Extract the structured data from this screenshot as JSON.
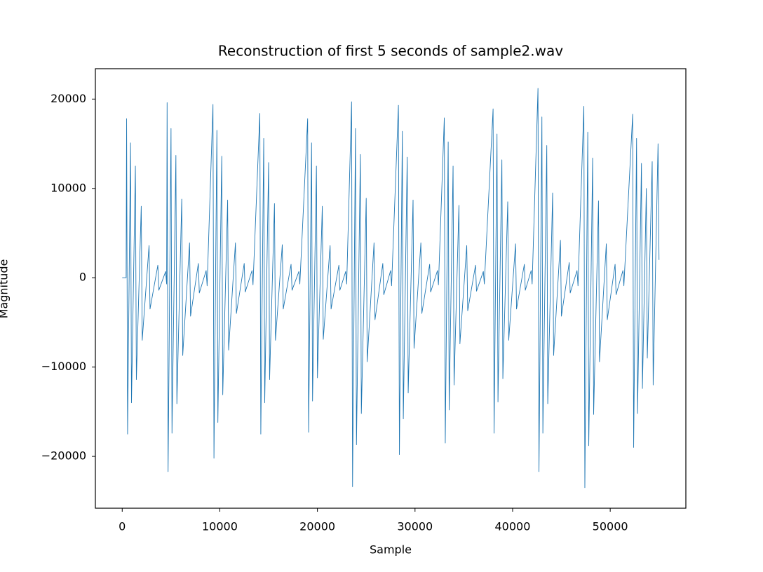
{
  "chart_data": {
    "type": "line",
    "title": "Reconstruction of first 5 seconds of sample2.wav",
    "x_label": "Sample",
    "y_label": "Magnitude",
    "color": "#1f77b4",
    "xlim": [
      -2750,
      57750
    ],
    "ylim": [
      -25800,
      23400
    ],
    "xticks": [
      0,
      10000,
      20000,
      30000,
      40000,
      50000
    ],
    "yticks": [
      {
        "value": -20000,
        "label": "−20000"
      },
      {
        "value": -10000,
        "label": "−10000"
      },
      0,
      10000,
      20000
    ],
    "x": [
      0,
      400,
      450,
      550,
      850,
      950,
      1350,
      1450,
      1950,
      2050,
      2750,
      2850,
      3650,
      3750,
      4450,
      4550,
      4600,
      4700,
      5000,
      5100,
      5500,
      5600,
      6100,
      6200,
      6900,
      7000,
      7800,
      7900,
      8600,
      8700,
      9300,
      9400,
      9700,
      9800,
      10200,
      10300,
      10800,
      10900,
      11600,
      11700,
      12500,
      12600,
      13300,
      13400,
      14100,
      14200,
      14500,
      14600,
      15000,
      15100,
      15600,
      15700,
      16400,
      16500,
      17300,
      17400,
      18100,
      18200,
      19000,
      19100,
      19400,
      19500,
      19900,
      20000,
      20500,
      20600,
      21300,
      21400,
      22200,
      22300,
      22900,
      23000,
      23500,
      23600,
      23900,
      24000,
      24400,
      24500,
      25000,
      25100,
      25800,
      25900,
      26700,
      26800,
      27500,
      27600,
      28300,
      28400,
      28700,
      28800,
      29200,
      29300,
      29800,
      29900,
      30600,
      30700,
      31500,
      31600,
      32300,
      32400,
      33000,
      33100,
      33400,
      33500,
      33900,
      34000,
      34500,
      34600,
      35300,
      35400,
      36200,
      36300,
      37000,
      37100,
      38000,
      38100,
      38400,
      38500,
      38900,
      39000,
      39500,
      39600,
      40300,
      40400,
      41200,
      41300,
      41900,
      42000,
      42600,
      42700,
      43000,
      43100,
      43500,
      43600,
      44100,
      44200,
      44900,
      45000,
      45800,
      45900,
      46600,
      46700,
      47300,
      47400,
      47700,
      47800,
      48200,
      48300,
      48800,
      48900,
      49600,
      49700,
      50500,
      50600,
      51300,
      51400,
      52300,
      52400,
      52700,
      52800,
      53200,
      53300,
      53700,
      53800,
      54300,
      54400,
      54900,
      55000
    ],
    "values": [
      0,
      0,
      17800,
      -17500,
      15100,
      -14000,
      12500,
      -11400,
      8000,
      -7000,
      3600,
      -3500,
      1400,
      -1400,
      700,
      -700,
      19600,
      -21700,
      16700,
      -17400,
      13700,
      -14100,
      8800,
      -8700,
      3900,
      -4300,
      1600,
      -1700,
      800,
      -900,
      19400,
      -20200,
      16500,
      -16200,
      13600,
      -13100,
      8700,
      -8100,
      3900,
      -4000,
      1600,
      -1600,
      800,
      -800,
      18400,
      -17500,
      15600,
      -14000,
      12900,
      -11400,
      8300,
      -7000,
      3700,
      -3500,
      1500,
      -1400,
      700,
      -700,
      17800,
      -17300,
      15100,
      -13800,
      12500,
      -11200,
      8000,
      -6900,
      3600,
      -3500,
      1400,
      -1400,
      700,
      -700,
      19700,
      -23400,
      16700,
      -18700,
      13800,
      -15200,
      8900,
      -9400,
      3900,
      -4700,
      1600,
      -1900,
      800,
      -900,
      19300,
      -19800,
      16400,
      -15800,
      13500,
      -12900,
      8700,
      -7900,
      3900,
      -4000,
      1500,
      -1600,
      800,
      -800,
      17900,
      -18500,
      15200,
      -14800,
      12500,
      -12000,
      8100,
      -7400,
      3600,
      -3700,
      1400,
      -1500,
      700,
      -700,
      18900,
      -17400,
      16100,
      -13900,
      13200,
      -11300,
      8500,
      -7000,
      3800,
      -3500,
      1500,
      -1400,
      800,
      -700,
      21200,
      -21700,
      18000,
      -17400,
      14800,
      -14100,
      9500,
      -8700,
      4200,
      -4300,
      1700,
      -1700,
      800,
      -900,
      19200,
      -23500,
      16300,
      -18800,
      13400,
      -15300,
      8600,
      -9400,
      3800,
      -4700,
      1500,
      -1900,
      800,
      -900,
      18300,
      -19000,
      15600,
      -15200,
      12800,
      -12400,
      10000,
      -9000,
      13000,
      -12000,
      15000,
      2000
    ]
  }
}
